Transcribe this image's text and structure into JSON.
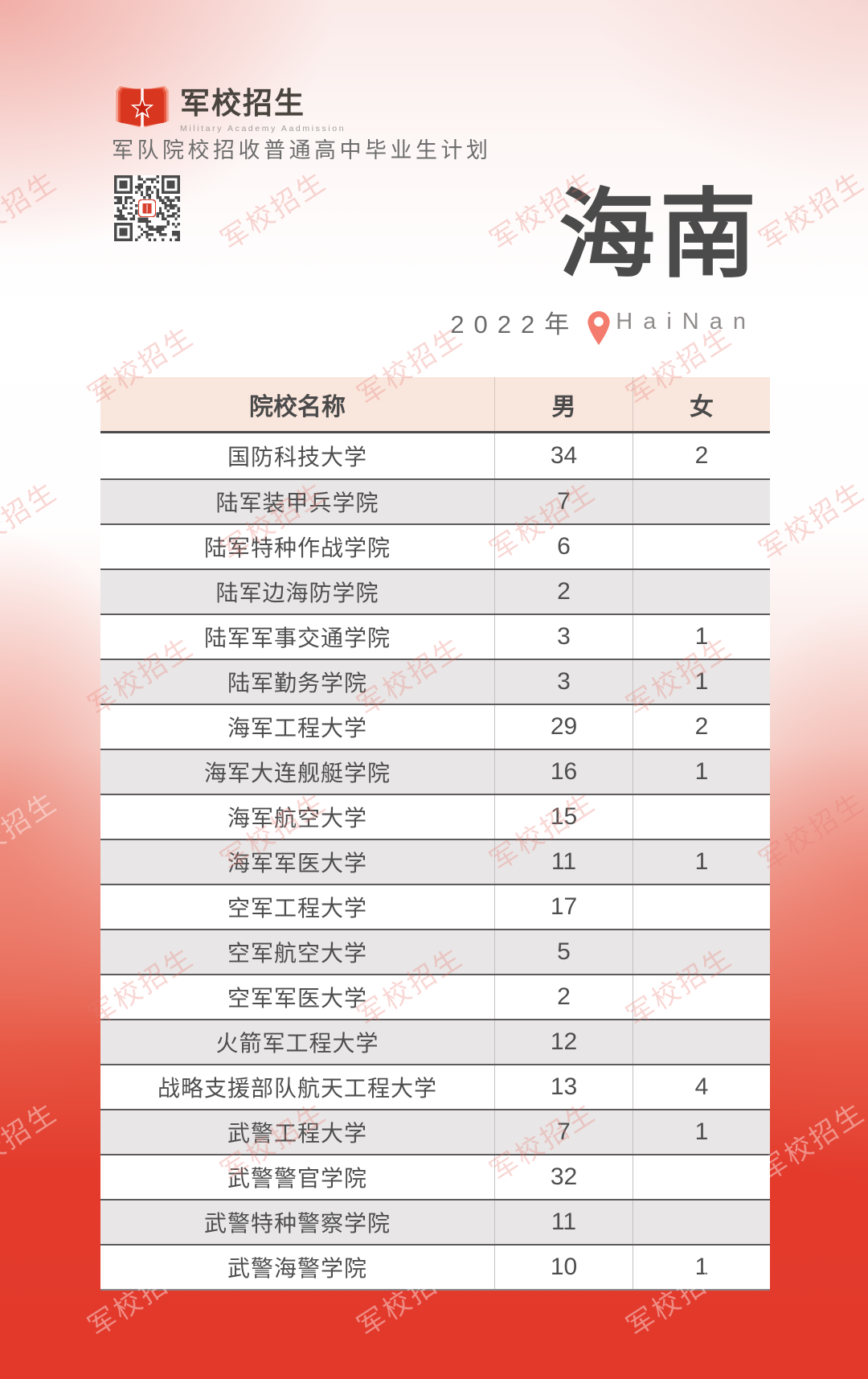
{
  "logo": {
    "title": "军校招生",
    "subtitle": "Military Academy Aadmission",
    "tagline": "军队院校招收普通高中毕业生计划"
  },
  "header": {
    "province": "海南",
    "year": "2022年",
    "pinyin": "HaiNan"
  },
  "watermark": {
    "text": "军校招生"
  },
  "table": {
    "columns": [
      "院校名称",
      "男",
      "女"
    ],
    "rows": [
      {
        "name": "国防科技大学",
        "male": "34",
        "female": "2"
      },
      {
        "name": "陆军装甲兵学院",
        "male": "7",
        "female": ""
      },
      {
        "name": "陆军特种作战学院",
        "male": "6",
        "female": ""
      },
      {
        "name": "陆军边海防学院",
        "male": "2",
        "female": ""
      },
      {
        "name": "陆军军事交通学院",
        "male": "3",
        "female": "1"
      },
      {
        "name": "陆军勤务学院",
        "male": "3",
        "female": "1"
      },
      {
        "name": "海军工程大学",
        "male": "29",
        "female": "2"
      },
      {
        "name": "海军大连舰艇学院",
        "male": "16",
        "female": "1"
      },
      {
        "name": "海军航空大学",
        "male": "15",
        "female": ""
      },
      {
        "name": "海军军医大学",
        "male": "11",
        "female": "1"
      },
      {
        "name": "空军工程大学",
        "male": "17",
        "female": ""
      },
      {
        "name": "空军航空大学",
        "male": "5",
        "female": ""
      },
      {
        "name": "空军军医大学",
        "male": "2",
        "female": ""
      },
      {
        "name": "火箭军工程大学",
        "male": "12",
        "female": ""
      },
      {
        "name": "战略支援部队航天工程大学",
        "male": "13",
        "female": "4"
      },
      {
        "name": "武警工程大学",
        "male": "7",
        "female": "1"
      },
      {
        "name": "武警警官学院",
        "male": "32",
        "female": ""
      },
      {
        "name": "武警特种警察学院",
        "male": "11",
        "female": ""
      },
      {
        "name": "武警海警学院",
        "male": "10",
        "female": "1"
      }
    ]
  },
  "colors": {
    "accent_red": "#e2392b",
    "logo_red": "#d93620",
    "pin_red": "#f47c6e",
    "table_header_bg": "#f9e6dd",
    "row_alt_bg": "#e8e6e6",
    "text_dark": "#4a4a4a"
  }
}
